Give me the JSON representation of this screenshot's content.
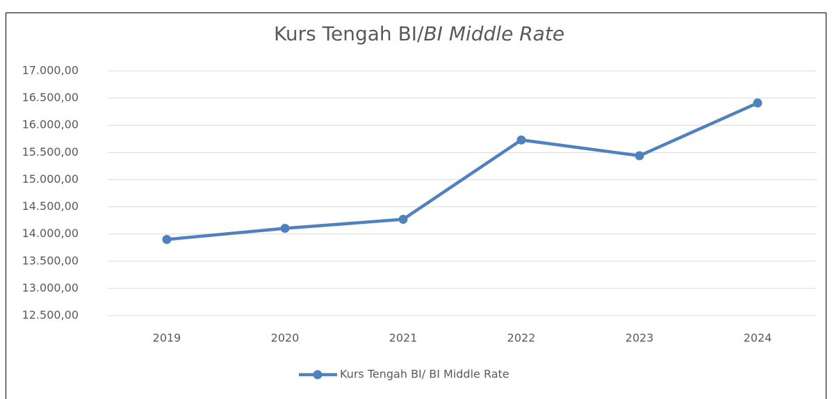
{
  "chart_data": {
    "type": "line",
    "title": [
      "Kurs Tengah BI/",
      "BI Middle Rate"
    ],
    "categories": [
      "2019",
      "2020",
      "2021",
      "2022",
      "2023",
      "2024"
    ],
    "series": [
      {
        "name": "Kurs Tengah BI/ BI Middle Rate",
        "color": "#4f81bd",
        "values": [
          13900,
          14105,
          14270,
          15730,
          15440,
          16410
        ]
      }
    ],
    "ylim": [
      12500,
      17000
    ],
    "yticks": [
      {
        "value": 12500,
        "label": "12.500,00"
      },
      {
        "value": 13000,
        "label": "13.000,00"
      },
      {
        "value": 13500,
        "label": "13.500,00"
      },
      {
        "value": 14000,
        "label": "14.000,00"
      },
      {
        "value": 14500,
        "label": "14.500,00"
      },
      {
        "value": 15000,
        "label": "15.000,00"
      },
      {
        "value": 15500,
        "label": "15.500,00"
      },
      {
        "value": 16000,
        "label": "16.000,00"
      },
      {
        "value": 16500,
        "label": "16.500,00"
      },
      {
        "value": 17000,
        "label": "17.000,00"
      }
    ],
    "grid": true,
    "legend": "bottom"
  }
}
